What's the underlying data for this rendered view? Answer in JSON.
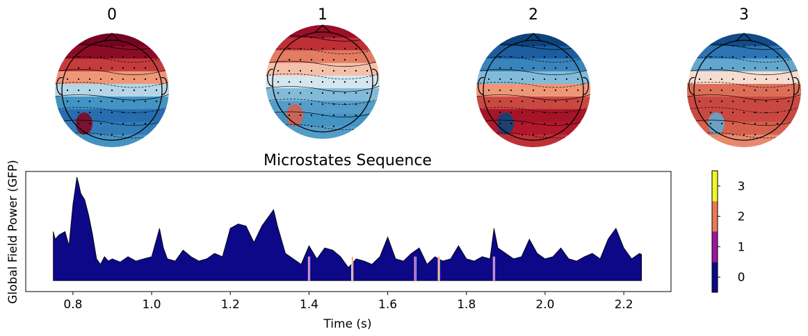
{
  "topomaps": [
    {
      "label": "0",
      "bands": [
        0.95,
        0.85,
        0.55,
        0.2,
        -0.1,
        -0.4,
        -0.65,
        -0.55,
        -0.4
      ],
      "hotspot": 0.9
    },
    {
      "label": "1",
      "bands": [
        0.8,
        0.6,
        0.3,
        0.1,
        -0.05,
        -0.2,
        -0.35,
        -0.4,
        -0.35
      ],
      "hotspot": 0.4
    },
    {
      "label": "2",
      "bands": [
        -0.9,
        -0.75,
        -0.5,
        -0.2,
        0.2,
        0.5,
        0.75,
        0.7,
        0.6
      ],
      "hotspot": -0.9
    },
    {
      "label": "3",
      "bands": [
        -0.85,
        -0.6,
        -0.3,
        0.05,
        0.35,
        0.5,
        0.5,
        0.4,
        0.25
      ],
      "hotspot": -0.3
    }
  ],
  "chart_data": {
    "type": "area",
    "title": "Microstates Sequence",
    "xlabel": "Time (s)",
    "ylabel": "Global Field Power (GFP)",
    "xlim": [
      0.68,
      2.32
    ],
    "ylim": [
      -0.1,
      1.0
    ],
    "xticks": [
      "0.8",
      "1.0",
      "1.2",
      "1.4",
      "1.6",
      "1.8",
      "2.0",
      "2.2"
    ],
    "xtick_values": [
      0.8,
      1.0,
      1.2,
      1.4,
      1.6,
      1.8,
      2.0,
      2.2
    ],
    "x": [
      0.75,
      0.755,
      0.765,
      0.78,
      0.79,
      0.8,
      0.805,
      0.81,
      0.815,
      0.82,
      0.83,
      0.84,
      0.85,
      0.86,
      0.87,
      0.88,
      0.89,
      0.9,
      0.92,
      0.94,
      0.96,
      0.98,
      1.0,
      1.02,
      1.03,
      1.04,
      1.06,
      1.08,
      1.1,
      1.12,
      1.14,
      1.16,
      1.18,
      1.2,
      1.22,
      1.24,
      1.26,
      1.28,
      1.3,
      1.31,
      1.32,
      1.34,
      1.36,
      1.38,
      1.4,
      1.42,
      1.44,
      1.46,
      1.48,
      1.5,
      1.52,
      1.54,
      1.56,
      1.58,
      1.6,
      1.62,
      1.64,
      1.66,
      1.68,
      1.7,
      1.72,
      1.74,
      1.76,
      1.78,
      1.8,
      1.82,
      1.84,
      1.86,
      1.87,
      1.88,
      1.9,
      1.92,
      1.94,
      1.96,
      1.98,
      2.0,
      2.02,
      2.04,
      2.06,
      2.08,
      2.1,
      2.12,
      2.14,
      2.16,
      2.18,
      2.2,
      2.22,
      2.24,
      2.245
    ],
    "values": [
      0.45,
      0.38,
      0.42,
      0.45,
      0.32,
      0.7,
      0.82,
      0.95,
      0.88,
      0.8,
      0.74,
      0.6,
      0.42,
      0.2,
      0.15,
      0.22,
      0.18,
      0.2,
      0.17,
      0.22,
      0.18,
      0.2,
      0.22,
      0.48,
      0.3,
      0.2,
      0.18,
      0.28,
      0.22,
      0.18,
      0.2,
      0.25,
      0.22,
      0.48,
      0.52,
      0.5,
      0.35,
      0.5,
      0.6,
      0.65,
      0.5,
      0.25,
      0.2,
      0.15,
      0.32,
      0.2,
      0.3,
      0.28,
      0.22,
      0.12,
      0.2,
      0.18,
      0.15,
      0.22,
      0.4,
      0.2,
      0.18,
      0.25,
      0.3,
      0.15,
      0.22,
      0.18,
      0.2,
      0.32,
      0.2,
      0.18,
      0.22,
      0.2,
      0.48,
      0.3,
      0.25,
      0.2,
      0.22,
      0.38,
      0.25,
      0.2,
      0.22,
      0.3,
      0.2,
      0.18,
      0.22,
      0.25,
      0.2,
      0.38,
      0.48,
      0.3,
      0.2,
      0.25,
      0.24
    ],
    "transitions": [
      {
        "x": 1.4,
        "state": 1
      },
      {
        "x": 1.51,
        "state": 2
      },
      {
        "x": 1.67,
        "state": 1
      },
      {
        "x": 1.73,
        "state": 2
      },
      {
        "x": 1.87,
        "state": 1
      }
    ],
    "colorbar": {
      "ticks": [
        "0",
        "1",
        "2",
        "3"
      ],
      "colors": [
        "#0d0887",
        "#9c179e",
        "#ed7953",
        "#f0f921"
      ]
    }
  }
}
